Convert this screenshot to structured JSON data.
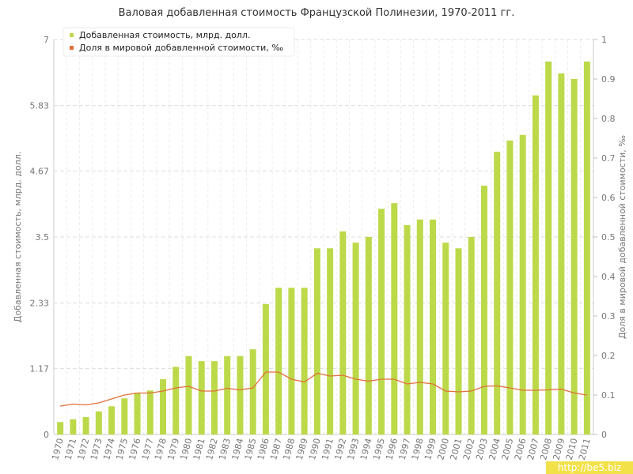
{
  "chart_data": {
    "type": "bar-line",
    "title": "Валовая добавленная стоимость Французской Полинезии, 1970-2011 гг.",
    "y_label": "Добавленная стоимость, млрд. долл.",
    "y2_label": "Доля в мировой добавленной стоимости, ‰",
    "watermark": "http://be5.biz",
    "categories": [
      "1970",
      "1971",
      "1972",
      "1973",
      "1974",
      "1975",
      "1976",
      "1977",
      "1978",
      "1979",
      "1980",
      "1981",
      "1982",
      "1983",
      "1984",
      "1985",
      "1986",
      "1987",
      "1988",
      "1989",
      "1990",
      "1991",
      "1992",
      "1993",
      "1994",
      "1995",
      "1996",
      "1997",
      "1998",
      "1999",
      "2000",
      "2001",
      "2002",
      "2003",
      "2004",
      "2005",
      "2006",
      "2007",
      "2008",
      "2009",
      "2010",
      "2011"
    ],
    "series": [
      {
        "name": "Добавленная стоимость, млрд. долл.",
        "color": "#bcd94a",
        "kind": "bar",
        "values": [
          0.22,
          0.27,
          0.31,
          0.41,
          0.5,
          0.64,
          0.74,
          0.78,
          0.98,
          1.2,
          1.39,
          1.3,
          1.3,
          1.39,
          1.39,
          1.51,
          2.31,
          2.6,
          2.6,
          2.6,
          3.3,
          3.3,
          3.6,
          3.4,
          3.5,
          4.0,
          4.1,
          3.71,
          3.81,
          3.81,
          3.4,
          3.3,
          3.5,
          4.41,
          5.01,
          5.21,
          5.31,
          6.01,
          6.61,
          6.4,
          6.3,
          6.61
        ]
      },
      {
        "name": "Доля в мировой добавленной стоимости, ‰",
        "color": "#e0703a",
        "kind": "line",
        "axis": "y2",
        "values": [
          0.072,
          0.077,
          0.075,
          0.08,
          0.09,
          0.1,
          0.105,
          0.105,
          0.11,
          0.118,
          0.122,
          0.11,
          0.11,
          0.117,
          0.113,
          0.118,
          0.158,
          0.158,
          0.14,
          0.133,
          0.155,
          0.148,
          0.15,
          0.14,
          0.135,
          0.14,
          0.14,
          0.128,
          0.132,
          0.128,
          0.11,
          0.108,
          0.11,
          0.122,
          0.123,
          0.118,
          0.112,
          0.112,
          0.113,
          0.115,
          0.105,
          0.1
        ]
      }
    ],
    "ylim": [
      0,
      7
    ],
    "yticks": [
      0,
      1.17,
      2.33,
      3.5,
      4.67,
      5.83,
      7
    ],
    "y2lim": [
      0,
      1
    ],
    "y2ticks": [
      0,
      0.1,
      0.2,
      0.3,
      0.4,
      0.5,
      0.6,
      0.7,
      0.8,
      0.9,
      1
    ],
    "grid": true,
    "legend": "top-left"
  }
}
